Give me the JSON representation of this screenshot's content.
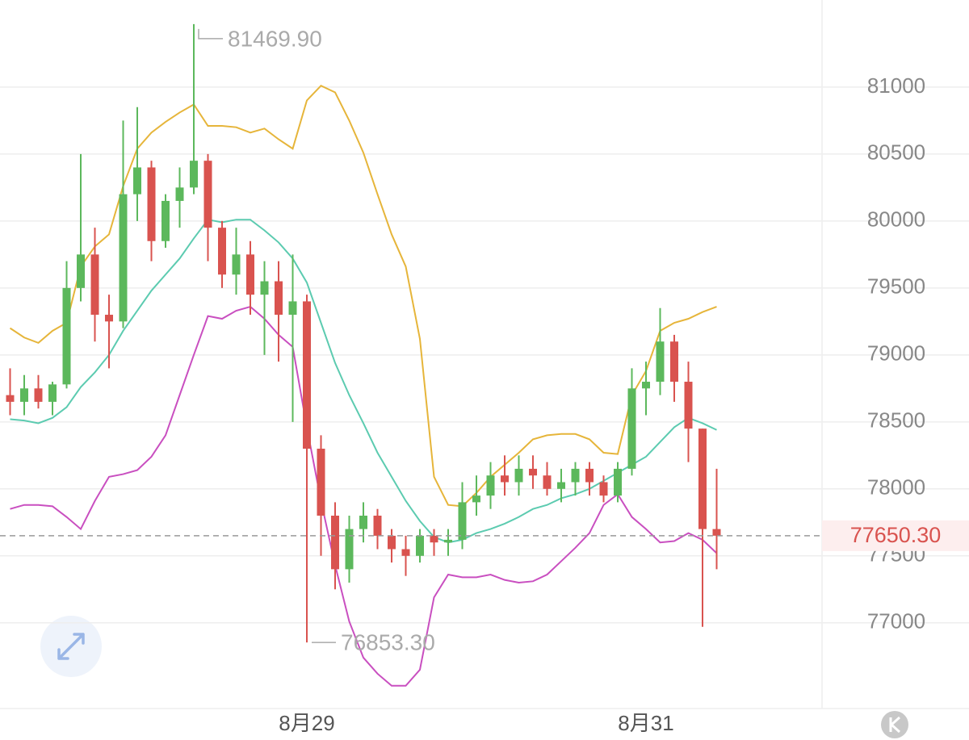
{
  "chart_data": {
    "type": "candlestick",
    "categories": [
      null,
      null,
      null,
      null,
      null,
      null,
      null,
      null,
      null,
      null,
      null,
      null,
      null,
      null,
      null,
      null,
      null,
      null,
      null,
      null,
      null,
      "8月29",
      null,
      null,
      null,
      null,
      null,
      null,
      null,
      null,
      null,
      null,
      null,
      null,
      null,
      null,
      null,
      null,
      null,
      null,
      null,
      null,
      null,
      null,
      null,
      "8月31",
      null,
      null,
      null,
      null,
      null
    ],
    "ylim": [
      76360,
      81650
    ],
    "yticks": [
      77000,
      77500,
      78000,
      78500,
      79000,
      79500,
      80000,
      80500,
      81000
    ],
    "grid": true,
    "up_color": "#5cb85c",
    "down_color": "#d9534f",
    "ohlc": [
      [
        78700,
        78900,
        78550,
        78650
      ],
      [
        78650,
        78850,
        78550,
        78750
      ],
      [
        78750,
        78850,
        78600,
        78650
      ],
      [
        78650,
        78800,
        78550,
        78780
      ],
      [
        78780,
        79700,
        78750,
        79500
      ],
      [
        79500,
        80500,
        79400,
        79750
      ],
      [
        79750,
        79950,
        79100,
        79300
      ],
      [
        79300,
        79450,
        78900,
        79250
      ],
      [
        79250,
        80750,
        79200,
        80200
      ],
      [
        80200,
        80850,
        80000,
        80400
      ],
      [
        80400,
        80450,
        79700,
        79850
      ],
      [
        79850,
        80200,
        79800,
        80150
      ],
      [
        80150,
        80400,
        79950,
        80250
      ],
      [
        80250,
        81469.9,
        80200,
        80450
      ],
      [
        80450,
        80500,
        79700,
        79950
      ],
      [
        79950,
        80000,
        79500,
        79600
      ],
      [
        79600,
        79950,
        79450,
        79750
      ],
      [
        79750,
        79850,
        79300,
        79450
      ],
      [
        79450,
        79700,
        79000,
        79550
      ],
      [
        79550,
        79700,
        78950,
        79300
      ],
      [
        79300,
        79750,
        78500,
        79400
      ],
      [
        79400,
        79450,
        76853.3,
        78300
      ],
      [
        78300,
        78400,
        77500,
        77800
      ],
      [
        77800,
        77900,
        77250,
        77400
      ],
      [
        77400,
        77800,
        77300,
        77700
      ],
      [
        77700,
        77900,
        77600,
        77800
      ],
      [
        77800,
        77850,
        77550,
        77650
      ],
      [
        77650,
        77700,
        77450,
        77550
      ],
      [
        77550,
        77650,
        77350,
        77500
      ],
      [
        77500,
        77700,
        77450,
        77650
      ],
      [
        77650,
        77700,
        77500,
        77600
      ],
      [
        77600,
        77700,
        77500,
        77620
      ],
      [
        77620,
        78050,
        77550,
        77900
      ],
      [
        77900,
        78100,
        77800,
        77950
      ],
      [
        77950,
        78200,
        77850,
        78100
      ],
      [
        78100,
        78250,
        77950,
        78050
      ],
      [
        78050,
        78250,
        77950,
        78150
      ],
      [
        78150,
        78250,
        78000,
        78100
      ],
      [
        78100,
        78200,
        77950,
        78000
      ],
      [
        78000,
        78150,
        77900,
        78050
      ],
      [
        78050,
        78200,
        77950,
        78150
      ],
      [
        78150,
        78200,
        77950,
        78050
      ],
      [
        78050,
        78100,
        77900,
        77950
      ],
      [
        77950,
        78200,
        77900,
        78150
      ],
      [
        78150,
        78900,
        78100,
        78750
      ],
      [
        78750,
        78950,
        78550,
        78800
      ],
      [
        78800,
        79350,
        78700,
        79100
      ],
      [
        79100,
        79150,
        78650,
        78800
      ],
      [
        78800,
        78950,
        78200,
        78450
      ],
      [
        78450,
        78450,
        76970,
        77700
      ],
      [
        77700,
        78150,
        77400,
        77650.3
      ]
    ],
    "bands": [
      {
        "color": "#e6b53a",
        "values": [
          79200,
          79130,
          79090,
          79180,
          79240,
          79660,
          79810,
          79900,
          80260,
          80540,
          80660,
          80740,
          80810,
          80870,
          80710,
          80710,
          80700,
          80660,
          80690,
          80610,
          80540,
          80900,
          81010,
          80960,
          80750,
          80510,
          80200,
          79900,
          79660,
          79120,
          78090,
          77880,
          77870,
          77970,
          78090,
          78180,
          78270,
          78370,
          78400,
          78410,
          78410,
          78370,
          78270,
          78260,
          78700,
          78880,
          79180,
          79240,
          79270,
          79320,
          79360
        ]
      },
      {
        "color": "#5ccbb0",
        "values": [
          78520,
          78510,
          78490,
          78530,
          78610,
          78760,
          78870,
          79000,
          79180,
          79330,
          79480,
          79600,
          79720,
          79870,
          80010,
          79990,
          80010,
          80010,
          79930,
          79840,
          79720,
          79540,
          79240,
          78940,
          78700,
          78490,
          78270,
          78090,
          77910,
          77760,
          77640,
          77600,
          77620,
          77670,
          77700,
          77740,
          77790,
          77850,
          77880,
          77930,
          77960,
          78000,
          78060,
          78120,
          78180,
          78240,
          78350,
          78460,
          78530,
          78490,
          78440
        ]
      },
      {
        "color": "#c94fc0",
        "values": [
          77850,
          77880,
          77880,
          77870,
          77790,
          77700,
          77910,
          78090,
          78110,
          78140,
          78240,
          78400,
          78700,
          79000,
          79290,
          79270,
          79330,
          79360,
          79270,
          79150,
          79060,
          78460,
          77910,
          77430,
          77010,
          76740,
          76620,
          76530,
          76530,
          76650,
          77190,
          77360,
          77340,
          77340,
          77360,
          77320,
          77300,
          77310,
          77360,
          77460,
          77560,
          77670,
          77880,
          77960,
          77790,
          77700,
          77600,
          77610,
          77670,
          77620,
          77520
        ]
      }
    ],
    "max_label": "81469.90",
    "min_label": "76853.30",
    "last_price": {
      "value": 77650.3,
      "label": "77650.30"
    }
  }
}
